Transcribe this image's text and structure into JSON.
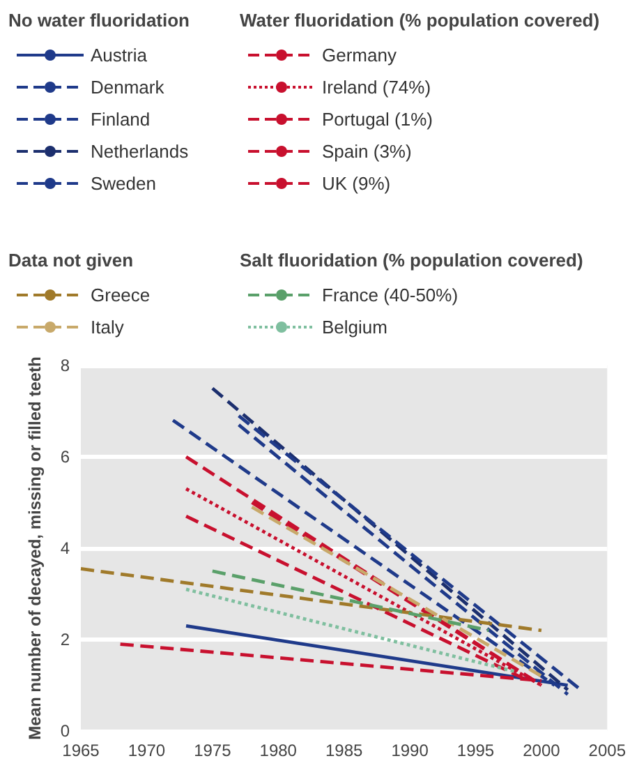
{
  "chart_data": {
    "type": "line",
    "ylabel": "Mean number of decayed, missing or filled teeth",
    "annotations": [
      "No water fluoridation",
      "Water fluoridation (% population covered)",
      "Data not given",
      "Salt fluoridation (% population covered)"
    ],
    "xlim": [
      1965,
      2005
    ],
    "xticks": [
      1965,
      1970,
      1975,
      1980,
      1985,
      1990,
      1995,
      2000,
      2005
    ],
    "ylim": [
      0,
      8
    ],
    "yticks": [
      0,
      2,
      4,
      6,
      8
    ],
    "grid": "y",
    "legend": "top",
    "marker": "none",
    "series": [
      {
        "name": "Austria",
        "color": "#1f3a8a",
        "line_style": "solid",
        "x": [
          1973,
          2002
        ],
        "values": [
          2.3,
          1.0
        ]
      },
      {
        "name": "Denmark",
        "color": "#1f3a8a",
        "line_style": "dashed",
        "x": [
          1972,
          2001
        ],
        "values": [
          6.8,
          1.0
        ]
      },
      {
        "name": "Finland",
        "color": "#1f3a8a",
        "line_style": "dashed",
        "x": [
          1977,
          2002
        ],
        "values": [
          6.7,
          0.8
        ]
      },
      {
        "name": "Netherlands",
        "color": "#1c2f6e",
        "line_style": "dashed",
        "x": [
          1975,
          2002
        ],
        "values": [
          7.5,
          0.9
        ]
      },
      {
        "name": "Sweden",
        "color": "#1f3a8a",
        "line_style": "dashed",
        "x": [
          1977,
          2003
        ],
        "values": [
          6.9,
          0.9
        ]
      },
      {
        "name": "Germany",
        "color": "#c8102e",
        "line_style": "dashed",
        "x": [
          1973,
          2000
        ],
        "values": [
          6.0,
          1.0
        ]
      },
      {
        "name": "Ireland (74%)",
        "color": "#c8102e",
        "line_style": "dotted",
        "x": [
          1973,
          2000
        ],
        "values": [
          5.3,
          1.0
        ]
      },
      {
        "name": "Portugal (1%)",
        "color": "#c8102e",
        "line_style": "dashed",
        "x": [
          1978,
          2000
        ],
        "values": [
          5.0,
          1.0
        ]
      },
      {
        "name": "Spain (3%)",
        "color": "#c8102e",
        "line_style": "dashed",
        "x": [
          1968,
          2000
        ],
        "values": [
          1.9,
          1.1
        ]
      },
      {
        "name": "UK (9%)",
        "color": "#c8102e",
        "line_style": "dashed",
        "x": [
          1973,
          1999
        ],
        "values": [
          4.7,
          1.1
        ]
      },
      {
        "name": "Greece",
        "color": "#a07a2a",
        "line_style": "dashed",
        "x": [
          1965,
          2000
        ],
        "values": [
          3.55,
          2.2
        ]
      },
      {
        "name": "Italy",
        "color": "#c8a96a",
        "line_style": "dashed",
        "x": [
          1978,
          2000
        ],
        "values": [
          4.9,
          1.2
        ]
      },
      {
        "name": "France (40-50%)",
        "color": "#5aa06a",
        "line_style": "dashed",
        "x": [
          1975,
          1996
        ],
        "values": [
          3.5,
          2.2
        ]
      },
      {
        "name": "Belgium",
        "color": "#7fbf9f",
        "line_style": "dotted",
        "x": [
          1973,
          1998
        ],
        "values": [
          3.1,
          1.3
        ]
      }
    ]
  }
}
